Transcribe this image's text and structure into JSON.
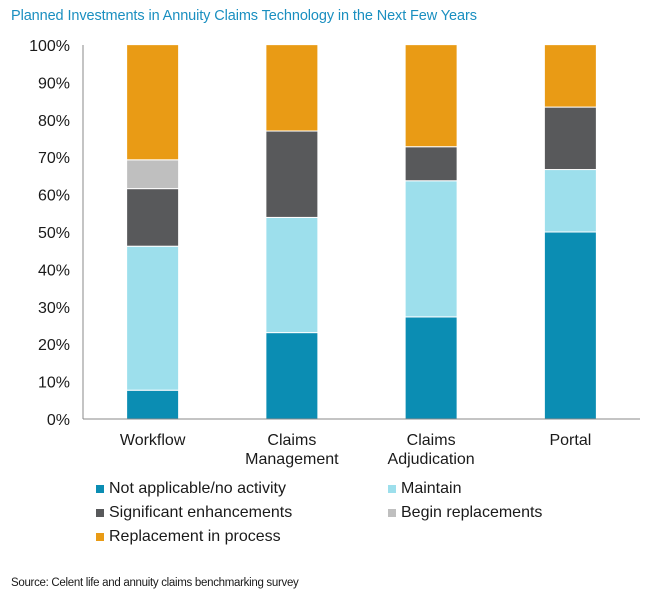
{
  "chart_data": {
    "type": "bar",
    "stacked": true,
    "title": "Planned Investments in Annuity Claims Technology in the Next Few Years",
    "xlabel": "",
    "ylabel": "",
    "ylim": [
      0,
      100
    ],
    "yticks": [
      "0%",
      "10%",
      "20%",
      "30%",
      "40%",
      "50%",
      "60%",
      "70%",
      "80%",
      "90%",
      "100%"
    ],
    "categories": [
      [
        "Workflow"
      ],
      [
        "Claims",
        "Management"
      ],
      [
        "Claims",
        "Adjudication"
      ],
      [
        "Portal"
      ]
    ],
    "series": [
      {
        "name": "Not applicable/no activity",
        "color": "#0b8db3",
        "values": [
          7.7,
          23.1,
          27.3,
          50.0
        ]
      },
      {
        "name": "Maintain",
        "color": "#9ddfec",
        "values": [
          38.5,
          30.8,
          36.4,
          16.7
        ]
      },
      {
        "name": "Significant enhancements",
        "color": "#58595b",
        "values": [
          15.4,
          23.1,
          9.1,
          16.7
        ]
      },
      {
        "name": "Begin replacements",
        "color": "#bfbfbf",
        "values": [
          7.7,
          0,
          0,
          0
        ]
      },
      {
        "name": "Replacement in process",
        "color": "#e99b15",
        "values": [
          30.8,
          23.1,
          27.3,
          16.7
        ]
      }
    ],
    "grid": false,
    "legend_position": "bottom",
    "source": "Source: Celent life and annuity claims benchmarking survey"
  }
}
